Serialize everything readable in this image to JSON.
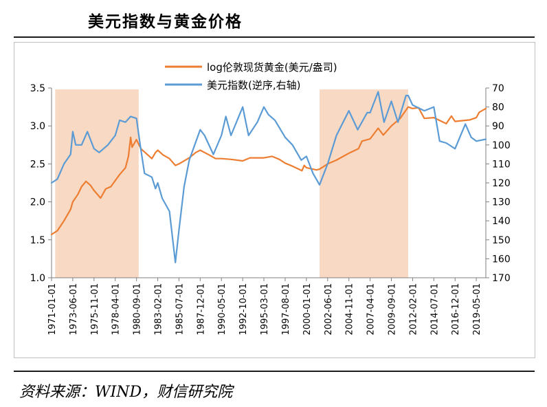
{
  "page": {
    "title": "美元指数与黄金价格",
    "source": "资料来源：WIND，财信研究院"
  },
  "chart_data": {
    "type": "line",
    "title": "",
    "legend": "top-center",
    "x_ticks": [
      "1971-01-01",
      "1973-06-01",
      "1975-11-01",
      "1978-04-01",
      "1980-09-01",
      "1983-02-01",
      "1985-07-01",
      "1987-12-01",
      "1990-05-01",
      "1992-10-01",
      "1995-03-01",
      "1997-08-01",
      "2000-01-01",
      "2002-06-01",
      "2004-11-01",
      "2007-04-01",
      "2009-09-01",
      "2012-02-01",
      "2014-07-01",
      "2016-12-01",
      "2019-05-01"
    ],
    "xlim": [
      "1971-01-01",
      "2020-06-01"
    ],
    "left_axis": {
      "ylim": [
        1.0,
        3.5
      ],
      "ticks": [
        "1.0",
        "1.5",
        "2.0",
        "2.5",
        "3.0",
        "3.5"
      ]
    },
    "right_axis": {
      "ylim": [
        170,
        70
      ],
      "reversed": true,
      "ticks": [
        "70",
        "80",
        "90",
        "100",
        "110",
        "120",
        "130",
        "140",
        "150",
        "160",
        "170"
      ]
    },
    "shaded_periods": [
      {
        "start": "1971-06-01",
        "end": "1980-12-01",
        "color": "#f8d9c4"
      },
      {
        "start": "2001-07-01",
        "end": "2011-08-01",
        "color": "#f8d9c4"
      }
    ],
    "series": [
      {
        "name": "log伦敦现货黄金(美元/盎司)",
        "axis": "left",
        "color": "#ed7d31",
        "points": [
          [
            "1971-01-01",
            1.57
          ],
          [
            "1971-09-01",
            1.62
          ],
          [
            "1972-06-01",
            1.75
          ],
          [
            "1973-03-01",
            1.9
          ],
          [
            "1973-06-01",
            2.0
          ],
          [
            "1974-01-01",
            2.1
          ],
          [
            "1974-06-01",
            2.2
          ],
          [
            "1974-12-01",
            2.27
          ],
          [
            "1975-06-01",
            2.22
          ],
          [
            "1975-11-01",
            2.15
          ],
          [
            "1976-08-01",
            2.05
          ],
          [
            "1977-03-01",
            2.17
          ],
          [
            "1977-10-01",
            2.2
          ],
          [
            "1978-04-01",
            2.28
          ],
          [
            "1978-10-01",
            2.36
          ],
          [
            "1979-06-01",
            2.45
          ],
          [
            "1979-10-01",
            2.6
          ],
          [
            "1980-01-01",
            2.85
          ],
          [
            "1980-03-01",
            2.72
          ],
          [
            "1980-09-01",
            2.82
          ],
          [
            "1981-03-01",
            2.7
          ],
          [
            "1982-06-01",
            2.57
          ],
          [
            "1982-11-01",
            2.65
          ],
          [
            "1983-02-01",
            2.68
          ],
          [
            "1983-09-01",
            2.62
          ],
          [
            "1984-06-01",
            2.57
          ],
          [
            "1985-02-01",
            2.48
          ],
          [
            "1985-07-01",
            2.5
          ],
          [
            "1986-09-01",
            2.58
          ],
          [
            "1987-06-01",
            2.65
          ],
          [
            "1987-12-01",
            2.68
          ],
          [
            "1988-12-01",
            2.62
          ],
          [
            "1989-09-01",
            2.57
          ],
          [
            "1990-05-01",
            2.57
          ],
          [
            "1991-06-01",
            2.56
          ],
          [
            "1992-10-01",
            2.54
          ],
          [
            "1993-08-01",
            2.58
          ],
          [
            "1994-06-01",
            2.58
          ],
          [
            "1995-03-01",
            2.58
          ],
          [
            "1996-02-01",
            2.6
          ],
          [
            "1996-12-01",
            2.56
          ],
          [
            "1997-08-01",
            2.51
          ],
          [
            "1998-06-01",
            2.47
          ],
          [
            "1999-07-01",
            2.41
          ],
          [
            "1999-10-01",
            2.48
          ],
          [
            "2000-01-01",
            2.45
          ],
          [
            "2001-03-01",
            2.42
          ],
          [
            "2001-07-01",
            2.43
          ],
          [
            "2002-06-01",
            2.5
          ],
          [
            "2003-06-01",
            2.55
          ],
          [
            "2004-11-01",
            2.64
          ],
          [
            "2005-12-01",
            2.7
          ],
          [
            "2006-05-01",
            2.8
          ],
          [
            "2007-04-01",
            2.83
          ],
          [
            "2008-03-01",
            2.97
          ],
          [
            "2008-10-01",
            2.88
          ],
          [
            "2009-09-01",
            3.0
          ],
          [
            "2010-09-01",
            3.1
          ],
          [
            "2011-08-01",
            3.25
          ],
          [
            "2012-02-01",
            3.23
          ],
          [
            "2012-10-01",
            3.24
          ],
          [
            "2013-06-01",
            3.1
          ],
          [
            "2014-07-01",
            3.11
          ],
          [
            "2015-12-01",
            3.03
          ],
          [
            "2016-07-01",
            3.13
          ],
          [
            "2016-12-01",
            3.06
          ],
          [
            "2018-08-01",
            3.08
          ],
          [
            "2019-05-01",
            3.11
          ],
          [
            "2019-09-01",
            3.18
          ],
          [
            "2020-06-01",
            3.23
          ]
        ]
      },
      {
        "name": "美元指数(逆序,右轴)",
        "axis": "right",
        "color": "#5b9bd5",
        "points": [
          [
            "1971-01-01",
            120
          ],
          [
            "1971-09-01",
            118
          ],
          [
            "1972-06-01",
            110
          ],
          [
            "1973-03-01",
            105
          ],
          [
            "1973-06-01",
            93
          ],
          [
            "1973-10-01",
            100
          ],
          [
            "1974-06-01",
            100
          ],
          [
            "1975-02-01",
            93
          ],
          [
            "1975-11-01",
            102
          ],
          [
            "1976-06-01",
            104
          ],
          [
            "1977-06-01",
            100
          ],
          [
            "1978-04-01",
            95
          ],
          [
            "1978-10-01",
            87
          ],
          [
            "1979-06-01",
            88
          ],
          [
            "1980-01-01",
            85
          ],
          [
            "1980-09-01",
            86
          ],
          [
            "1981-02-01",
            100
          ],
          [
            "1981-08-01",
            115
          ],
          [
            "1982-06-01",
            117
          ],
          [
            "1982-11-01",
            123
          ],
          [
            "1983-02-01",
            120
          ],
          [
            "1983-08-01",
            128
          ],
          [
            "1984-06-01",
            135
          ],
          [
            "1985-02-01",
            162
          ],
          [
            "1985-07-01",
            145
          ],
          [
            "1986-02-01",
            122
          ],
          [
            "1986-09-01",
            108
          ],
          [
            "1987-12-01",
            92
          ],
          [
            "1988-06-01",
            95
          ],
          [
            "1989-06-01",
            105
          ],
          [
            "1990-05-01",
            95
          ],
          [
            "1990-11-01",
            85
          ],
          [
            "1991-06-01",
            95
          ],
          [
            "1992-10-01",
            80
          ],
          [
            "1993-06-01",
            95
          ],
          [
            "1994-06-01",
            88
          ],
          [
            "1995-03-01",
            80
          ],
          [
            "1995-09-01",
            84
          ],
          [
            "1996-06-01",
            87
          ],
          [
            "1997-08-01",
            96
          ],
          [
            "1998-06-01",
            100
          ],
          [
            "1999-06-01",
            108
          ],
          [
            "2000-01-01",
            106
          ],
          [
            "2000-10-01",
            115
          ],
          [
            "2001-07-01",
            121
          ],
          [
            "2002-06-01",
            110
          ],
          [
            "2003-06-01",
            95
          ],
          [
            "2004-11-01",
            82
          ],
          [
            "2005-11-01",
            92
          ],
          [
            "2006-12-01",
            83
          ],
          [
            "2007-04-01",
            83
          ],
          [
            "2008-03-01",
            72
          ],
          [
            "2008-11-01",
            88
          ],
          [
            "2009-09-01",
            77
          ],
          [
            "2010-06-01",
            88
          ],
          [
            "2011-05-01",
            74
          ],
          [
            "2011-08-01",
            74
          ],
          [
            "2012-02-01",
            79
          ],
          [
            "2013-06-01",
            82
          ],
          [
            "2014-07-01",
            80
          ],
          [
            "2015-03-01",
            98
          ],
          [
            "2015-12-01",
            99
          ],
          [
            "2016-12-01",
            102
          ],
          [
            "2018-02-01",
            89
          ],
          [
            "2018-10-01",
            96
          ],
          [
            "2019-05-01",
            98
          ],
          [
            "2020-06-01",
            97
          ]
        ]
      }
    ]
  }
}
